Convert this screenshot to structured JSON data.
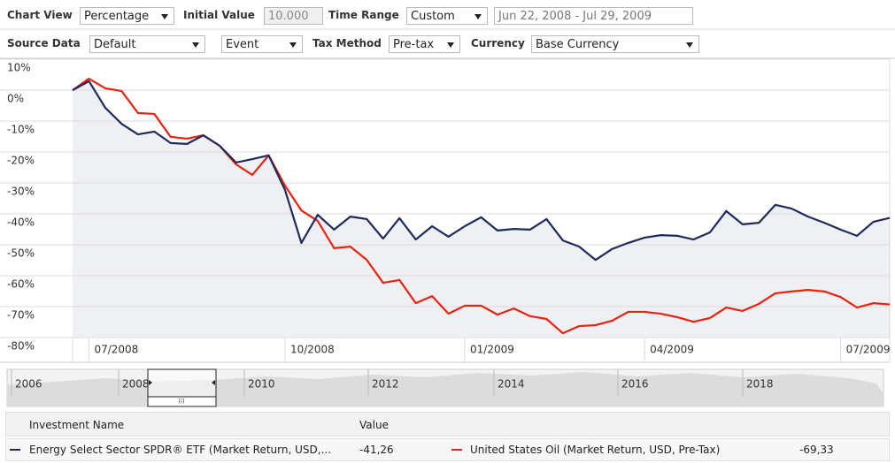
{
  "toolbar": {
    "row1": {
      "chart_view_label": "Chart View",
      "chart_view": "Percentage",
      "initial_value_label": "Initial Value",
      "initial_value": "10.000",
      "time_range_label": "Time Range",
      "time_range": "Custom",
      "date_range": "Jun 22, 2008 - Jul 29, 2009"
    },
    "row2": {
      "source_data_label": "Source Data",
      "source_data": "Default",
      "event": "Event",
      "tax_method_label": "Tax Method",
      "tax_method": "Pre-tax",
      "currency_label": "Currency",
      "currency": "Base Currency"
    }
  },
  "chart_data": {
    "type": "line",
    "categories": [
      null,
      "07/2008",
      null,
      null,
      null,
      null,
      null,
      null,
      null,
      null,
      null,
      null,
      null,
      "10/2008",
      null,
      null,
      null,
      null,
      null,
      null,
      null,
      null,
      null,
      null,
      "01/2009",
      null,
      null,
      null,
      null,
      null,
      null,
      null,
      null,
      null,
      null,
      "04/2009",
      null,
      null,
      null,
      null,
      null,
      null,
      null,
      null,
      null,
      null,
      null,
      "07/2009",
      null,
      null,
      null
    ],
    "series": [
      {
        "name": "Energy Select Sector SPDR® ETF (Market Return, USD,...",
        "color": "#1f2a5c",
        "values": [
          0,
          2.9,
          -5.7,
          -10.9,
          -14.3,
          -13.4,
          -17.1,
          -17.4,
          -14.6,
          -18,
          -23.4,
          -22.3,
          -21.1,
          -32.3,
          -49.4,
          -40.3,
          -45.1,
          -40.9,
          -41.7,
          -48,
          -41.4,
          -48.3,
          -44,
          -47.4,
          -44,
          -41.1,
          -45.4,
          -44.9,
          -45.1,
          -41.7,
          -48.6,
          -50.6,
          -54.9,
          -51.4,
          -49.4,
          -47.7,
          -46.9,
          -47.1,
          -48.3,
          -46,
          -39.1,
          -43.4,
          -42.9,
          -37.1,
          -38.3,
          -40.9,
          -42.9,
          -45.1,
          -47.1,
          -42.6,
          -41.3
        ]
      },
      {
        "name": "United States Oil (Market Return, USD, Pre-Tax)",
        "color": "#e8220f",
        "values": [
          0,
          3.7,
          0.6,
          -0.3,
          -7.4,
          -7.7,
          -15.1,
          -15.7,
          -14.6,
          -18,
          -24,
          -27.4,
          -21.1,
          -30.9,
          -38.9,
          -42.3,
          -51.1,
          -50.6,
          -54.9,
          -62.3,
          -61.4,
          -68.9,
          -66.6,
          -72.3,
          -69.7,
          -69.7,
          -72.6,
          -70.6,
          -73.1,
          -74,
          -78.6,
          -76.3,
          -76,
          -74.6,
          -71.7,
          -71.7,
          -72.3,
          -73.4,
          -74.9,
          -73.7,
          -70.3,
          -71.4,
          -69.1,
          -65.7,
          -65.1,
          -64.6,
          -65.1,
          -66.9,
          -70.3,
          -68.9,
          -69.3
        ]
      }
    ],
    "ylim": [
      -80,
      10
    ],
    "yticks": [
      {
        "value": 10,
        "label": "10%"
      },
      {
        "value": 0,
        "label": "0%"
      },
      {
        "value": -10,
        "label": "-10%"
      },
      {
        "value": -20,
        "label": "-20%"
      },
      {
        "value": -30,
        "label": "-30%"
      },
      {
        "value": -40,
        "label": "-40%"
      },
      {
        "value": -50,
        "label": "-50%"
      },
      {
        "value": -60,
        "label": "-60%"
      },
      {
        "value": -70,
        "label": "-70%"
      },
      {
        "value": -80,
        "label": "-80%"
      }
    ],
    "grid": true
  },
  "navigator": {
    "labels": [
      "2006",
      "2008",
      "2010",
      "2012",
      "2014",
      "2016",
      "2018"
    ]
  },
  "legend_table": {
    "header": {
      "name": "Investment Name",
      "value": "Value"
    },
    "rows": [
      {
        "name": "Energy Select Sector SPDR® ETF (Market Return, USD,...",
        "value": "-41,26"
      },
      {
        "name": "United States Oil (Market Return, USD, Pre-Tax)",
        "value": "-69,33"
      }
    ]
  }
}
